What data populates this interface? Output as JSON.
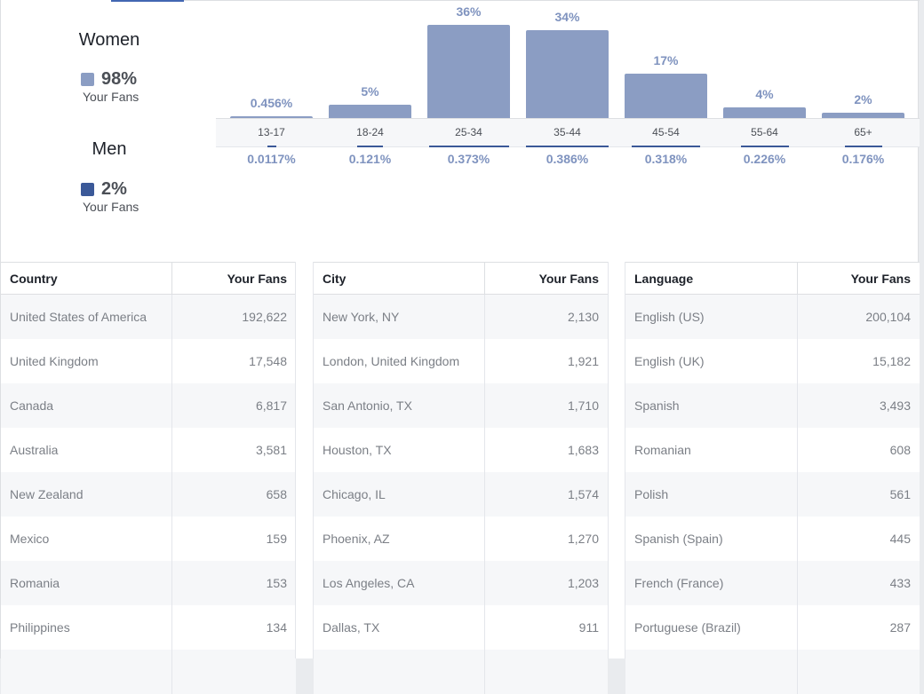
{
  "colors": {
    "women": "#8b9dc3",
    "men": "#3b5998",
    "accent": "#4267b2"
  },
  "gender": {
    "women": {
      "title": "Women",
      "pct": "98%",
      "sub": "Your Fans"
    },
    "men": {
      "title": "Men",
      "pct": "2%",
      "sub": "Your Fans"
    }
  },
  "chart_data": {
    "type": "bar",
    "categories": [
      "13-17",
      "18-24",
      "25-34",
      "35-44",
      "45-54",
      "55-64",
      "65+"
    ],
    "series": [
      {
        "name": "Women",
        "values": [
          0.456,
          5,
          36,
          34,
          17,
          4,
          2
        ],
        "labels": [
          "0.456%",
          "5%",
          "36%",
          "34%",
          "17%",
          "4%",
          "2%"
        ]
      },
      {
        "name": "Men",
        "values": [
          0.0117,
          0.121,
          0.373,
          0.386,
          0.318,
          0.226,
          0.176
        ],
        "labels": [
          "0.0117%",
          "0.121%",
          "0.373%",
          "0.386%",
          "0.318%",
          "0.226%",
          "0.176%"
        ]
      }
    ],
    "ylim": [
      0,
      36
    ]
  },
  "tables": [
    {
      "headers": [
        "Country",
        "Your Fans"
      ],
      "rows": [
        [
          "United States of America",
          "192,622"
        ],
        [
          "United Kingdom",
          "17,548"
        ],
        [
          "Canada",
          "6,817"
        ],
        [
          "Australia",
          "3,581"
        ],
        [
          "New Zealand",
          "658"
        ],
        [
          "Mexico",
          "159"
        ],
        [
          "Romania",
          "153"
        ],
        [
          "Philippines",
          "134"
        ],
        [
          "",
          ""
        ]
      ]
    },
    {
      "headers": [
        "City",
        "Your Fans"
      ],
      "rows": [
        [
          "New York, NY",
          "2,130"
        ],
        [
          "London, United Kingdom",
          "1,921"
        ],
        [
          "San Antonio, TX",
          "1,710"
        ],
        [
          "Houston, TX",
          "1,683"
        ],
        [
          "Chicago, IL",
          "1,574"
        ],
        [
          "Phoenix, AZ",
          "1,270"
        ],
        [
          "Los Angeles, CA",
          "1,203"
        ],
        [
          "Dallas, TX",
          "911"
        ],
        [
          "",
          ""
        ]
      ]
    },
    {
      "headers": [
        "Language",
        "Your Fans"
      ],
      "rows": [
        [
          "English (US)",
          "200,104"
        ],
        [
          "English (UK)",
          "15,182"
        ],
        [
          "Spanish",
          "3,493"
        ],
        [
          "Romanian",
          "608"
        ],
        [
          "Polish",
          "561"
        ],
        [
          "Spanish (Spain)",
          "445"
        ],
        [
          "French (France)",
          "433"
        ],
        [
          "Portuguese (Brazil)",
          "287"
        ],
        [
          "",
          ""
        ]
      ]
    }
  ]
}
